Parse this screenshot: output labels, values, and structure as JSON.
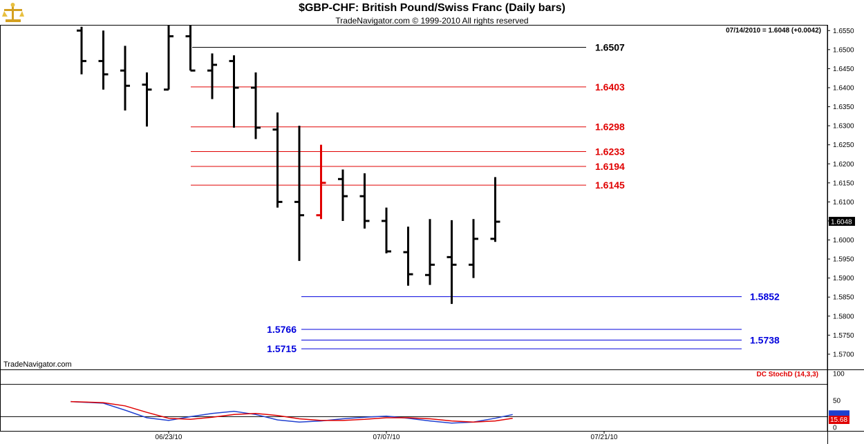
{
  "header": {
    "title": "$GBP-CHF:  British Pound/Swiss Franc  (Daily bars)",
    "subtitle": "TradeNavigator.com © 1999-2010 All rights reserved"
  },
  "quote": "07/14/2010 = 1.6048 (+0.0042)",
  "watermark": "TradeNavigator.com",
  "indicator_label": "DC StochD (14,3,3)",
  "colors": {
    "background": "#ffffff",
    "bar_default": "#000000",
    "bar_highlight": "#e00000",
    "resistance": "#e00000",
    "support": "#0000dd",
    "stoch_k": "#2040d0",
    "stoch_d": "#e00000"
  },
  "chart_data": [
    {
      "type": "ohlc",
      "title": "$GBP-CHF:  British Pound/Swiss Franc  (Daily bars)",
      "ylim": [
        1.566,
        1.6565
      ],
      "y_ticks": [
        "1.6550",
        "1.6500",
        "1.6450",
        "1.6400",
        "1.6350",
        "1.6300",
        "1.6250",
        "1.6200",
        "1.6150",
        "1.6100",
        "1.6050",
        "1.6000",
        "1.5950",
        "1.5900",
        "1.5850",
        "1.5800",
        "1.5750",
        "1.5700"
      ],
      "x_ticks": [
        {
          "label": "06/23/10",
          "index": 4
        },
        {
          "label": "07/07/10",
          "index": 14
        },
        {
          "label": "07/21/10",
          "index": 24
        }
      ],
      "last_price_label": "1.6048",
      "bars": [
        {
          "o": 1.655,
          "h": 1.656,
          "l": 1.6435,
          "c": 1.647
        },
        {
          "o": 1.647,
          "h": 1.655,
          "l": 1.6395,
          "c": 1.6435
        },
        {
          "o": 1.6445,
          "h": 1.651,
          "l": 1.634,
          "c": 1.6405
        },
        {
          "o": 1.6408,
          "h": 1.644,
          "l": 1.6298,
          "c": 1.6395
        },
        {
          "o": 1.6395,
          "h": 1.6565,
          "l": 1.6395,
          "c": 1.6535
        },
        {
          "o": 1.6535,
          "h": 1.6565,
          "l": 1.6445,
          "c": 1.6445
        },
        {
          "o": 1.6445,
          "h": 1.649,
          "l": 1.637,
          "c": 1.646
        },
        {
          "o": 1.647,
          "h": 1.6485,
          "l": 1.6295,
          "c": 1.64
        },
        {
          "o": 1.64,
          "h": 1.644,
          "l": 1.6265,
          "c": 1.6295
        },
        {
          "o": 1.629,
          "h": 1.6335,
          "l": 1.6085,
          "c": 1.61
        },
        {
          "o": 1.61,
          "h": 1.63,
          "l": 1.5945,
          "c": 1.6065,
          "highlight": false
        },
        {
          "o": 1.6065,
          "h": 1.625,
          "l": 1.6055,
          "c": 1.615,
          "highlight": true
        },
        {
          "o": 1.616,
          "h": 1.6185,
          "l": 1.605,
          "c": 1.6115
        },
        {
          "o": 1.6115,
          "h": 1.6175,
          "l": 1.603,
          "c": 1.605
        },
        {
          "o": 1.605,
          "h": 1.6085,
          "l": 1.5965,
          "c": 1.597
        },
        {
          "o": 1.5968,
          "h": 1.6035,
          "l": 1.588,
          "c": 1.591
        },
        {
          "o": 1.5908,
          "h": 1.6055,
          "l": 1.5882,
          "c": 1.5935
        },
        {
          "o": 1.5955,
          "h": 1.6052,
          "l": 1.5832,
          "c": 1.5935
        },
        {
          "o": 1.5935,
          "h": 1.6055,
          "l": 1.59,
          "c": 1.6003
        },
        {
          "o": 1.6003,
          "h": 1.6165,
          "l": 1.5995,
          "c": 1.6048
        }
      ],
      "levels": [
        {
          "value": 1.6507,
          "label": "1.6507",
          "color": "#000000",
          "from_index": 5.5,
          "label_side": "right"
        },
        {
          "value": 1.6403,
          "label": "1.6403",
          "color": "#e00000",
          "from_index": 5,
          "label_side": "right"
        },
        {
          "value": 1.6298,
          "label": "1.6298",
          "color": "#e00000",
          "from_index": 5,
          "label_side": "right"
        },
        {
          "value": 1.6233,
          "label": "1.6233",
          "color": "#e00000",
          "from_index": 5,
          "label_side": "right"
        },
        {
          "value": 1.6194,
          "label": "1.6194",
          "color": "#e00000",
          "from_index": 5,
          "label_side": "right"
        },
        {
          "value": 1.6145,
          "label": "1.6145",
          "color": "#e00000",
          "from_index": 5,
          "label_side": "right"
        },
        {
          "value": 1.5852,
          "label": "1.5852",
          "color": "#0000dd",
          "from_index": 10,
          "label_side": "far-right"
        },
        {
          "value": 1.5766,
          "label": "1.5766",
          "color": "#0000dd",
          "from_index": 10,
          "label_side": "left"
        },
        {
          "value": 1.5738,
          "label": "1.5738",
          "color": "#0000dd",
          "from_index": 10,
          "label_side": "far-right"
        },
        {
          "value": 1.5715,
          "label": "1.5715",
          "color": "#0000dd",
          "from_index": 10,
          "label_side": "left"
        }
      ]
    },
    {
      "type": "line",
      "title": "DC StochD (14,3,3)",
      "ylim": [
        0,
        100
      ],
      "y_ticks": [
        "100",
        "50",
        "0"
      ],
      "reference_lines": [
        80,
        20
      ],
      "value_labels": [
        "15.68"
      ],
      "series": [
        {
          "name": "%K",
          "color": "#2040d0",
          "values": [
            [
              -0.5,
              48
            ],
            [
              1,
              45
            ],
            [
              2,
              32
            ],
            [
              3,
              18
            ],
            [
              4,
              13
            ],
            [
              5,
              20
            ],
            [
              6,
              26
            ],
            [
              7,
              30
            ],
            [
              8,
              24
            ],
            [
              9,
              14
            ],
            [
              10,
              10
            ],
            [
              11,
              12
            ],
            [
              12,
              16
            ],
            [
              13,
              19
            ],
            [
              14,
              21
            ],
            [
              15,
              17
            ],
            [
              16,
              12
            ],
            [
              17,
              8
            ],
            [
              18,
              10
            ],
            [
              19,
              17
            ],
            [
              19.8,
              24
            ]
          ]
        },
        {
          "name": "%D",
          "color": "#e00000",
          "values": [
            [
              -0.5,
              48
            ],
            [
              1,
              46
            ],
            [
              2,
              40
            ],
            [
              3,
              28
            ],
            [
              4,
              17
            ],
            [
              5,
              15
            ],
            [
              6,
              19
            ],
            [
              7,
              24
            ],
            [
              8,
              26
            ],
            [
              9,
              22
            ],
            [
              10,
              16
            ],
            [
              11,
              13
            ],
            [
              12,
              13
            ],
            [
              13,
              15
            ],
            [
              14,
              18
            ],
            [
              15,
              18
            ],
            [
              16,
              16
            ],
            [
              17,
              12
            ],
            [
              18,
              10
            ],
            [
              19,
              12
            ],
            [
              19.8,
              17
            ]
          ]
        }
      ]
    }
  ]
}
